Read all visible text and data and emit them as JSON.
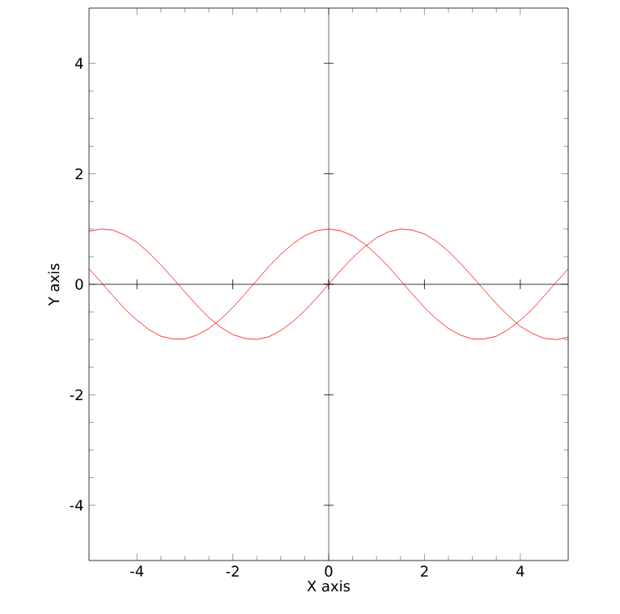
{
  "chart_data": {
    "type": "line",
    "xlabel": "X axis",
    "ylabel": "Y axis",
    "xlim": [
      -5,
      5
    ],
    "ylim": [
      -5,
      5
    ],
    "xticks": [
      -4,
      -2,
      0,
      2,
      4
    ],
    "yticks": [
      -4,
      -2,
      0,
      2,
      4
    ],
    "marker": "none",
    "line_style": "solid",
    "x": [
      -5,
      -4.75,
      -4.5,
      -4.25,
      -4,
      -3.75,
      -3.5,
      -3.25,
      -3,
      -2.75,
      -2.5,
      -2.25,
      -2,
      -1.75,
      -1.5,
      -1.25,
      -1,
      -0.75,
      -0.5,
      -0.25,
      0,
      0.25,
      0.5,
      0.75,
      1,
      1.25,
      1.5,
      1.75,
      2,
      2.25,
      2.5,
      2.75,
      3,
      3.25,
      3.5,
      3.75,
      4,
      4.25,
      4.5,
      4.75,
      5
    ],
    "series": [
      {
        "color": "#ff0000",
        "values": [
          0.96,
          1.0,
          0.98,
          0.89,
          0.76,
          0.57,
          0.35,
          0.11,
          -0.14,
          -0.38,
          -0.6,
          -0.78,
          -0.91,
          -0.98,
          -1.0,
          -0.95,
          -0.84,
          -0.68,
          -0.48,
          -0.25,
          0,
          0.25,
          0.48,
          0.68,
          0.84,
          0.95,
          1.0,
          0.98,
          0.91,
          0.78,
          0.6,
          0.38,
          0.14,
          -0.11,
          -0.35,
          -0.57,
          -0.76,
          -0.89,
          -0.98,
          -1.0,
          -0.96
        ]
      },
      {
        "color": "#ff0000",
        "values": [
          0.28,
          0.04,
          -0.21,
          -0.45,
          -0.65,
          -0.82,
          -0.94,
          -0.99,
          -0.99,
          -0.92,
          -0.8,
          -0.63,
          -0.42,
          -0.18,
          0.07,
          0.32,
          0.54,
          0.73,
          0.88,
          0.97,
          1.0,
          0.97,
          0.88,
          0.73,
          0.54,
          0.32,
          0.07,
          -0.18,
          -0.42,
          -0.63,
          -0.8,
          -0.92,
          -0.99,
          -0.99,
          -0.94,
          -0.82,
          -0.65,
          -0.45,
          -0.21,
          0.04,
          0.28
        ]
      }
    ]
  }
}
